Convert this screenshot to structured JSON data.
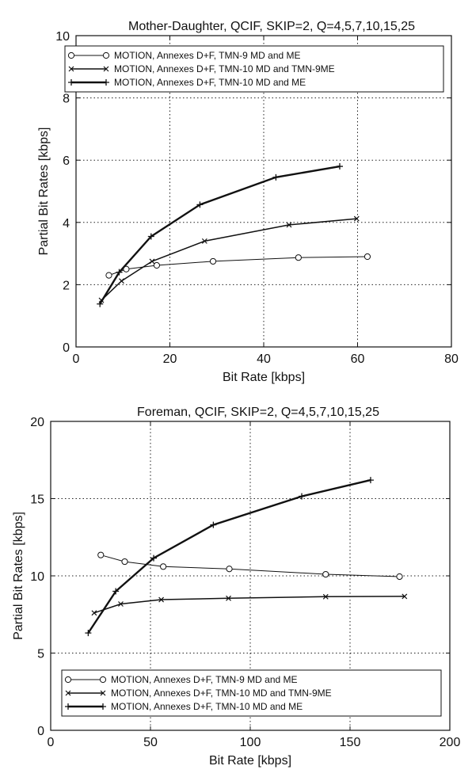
{
  "chart_data": [
    {
      "type": "line",
      "title": "Mother-Daughter, QCIF, SKIP=2, Q=4,5,7,10,15,25",
      "xlabel": "Bit Rate [kbps]",
      "ylabel": "Partial Bit Rates [kbps]",
      "xlim": [
        0,
        80
      ],
      "ylim": [
        0,
        10
      ],
      "xticks": [
        0,
        20,
        40,
        60,
        80
      ],
      "yticks": [
        0,
        2,
        4,
        6,
        8,
        10
      ],
      "grid": true,
      "legend_position": "top",
      "series": [
        {
          "name": "MOTION, Annexes D+F, TMN-9 MD and ME",
          "marker": "circle",
          "points": [
            [
              7.0,
              2.3
            ],
            [
              10.7,
              2.5
            ],
            [
              17.2,
              2.62
            ],
            [
              29.2,
              2.75
            ],
            [
              47.4,
              2.87
            ],
            [
              62.1,
              2.9
            ]
          ]
        },
        {
          "name": "MOTION, Annexes D+F, TMN-10 MD and TMN-9ME",
          "marker": "x",
          "points": [
            [
              5.4,
              1.5
            ],
            [
              9.7,
              2.12
            ],
            [
              16.2,
              2.75
            ],
            [
              27.4,
              3.4
            ],
            [
              45.4,
              3.92
            ],
            [
              59.8,
              4.12
            ]
          ]
        },
        {
          "name": "MOTION, Annexes D+F, TMN-10 MD and ME",
          "marker": "plus",
          "points": [
            [
              5.1,
              1.38
            ],
            [
              9.2,
              2.4
            ],
            [
              16.0,
              3.55
            ],
            [
              26.4,
              4.57
            ],
            [
              42.6,
              5.45
            ],
            [
              56.2,
              5.8
            ]
          ]
        }
      ]
    },
    {
      "type": "line",
      "title": "Foreman, QCIF, SKIP=2, Q=4,5,7,10,15,25",
      "xlabel": "Bit Rate [kbps]",
      "ylabel": "Partial Bit Rates [kbps]",
      "xlim": [
        0,
        200
      ],
      "ylim": [
        0,
        20
      ],
      "xticks": [
        0,
        50,
        100,
        150,
        200
      ],
      "yticks": [
        0,
        5,
        10,
        15,
        20
      ],
      "grid": true,
      "legend_position": "bottom",
      "series": [
        {
          "name": "MOTION, Annexes D+F, TMN-9 MD and ME",
          "marker": "circle",
          "points": [
            [
              25.1,
              11.35
            ],
            [
              37.1,
              10.92
            ],
            [
              56.4,
              10.6
            ],
            [
              89.5,
              10.45
            ],
            [
              137.8,
              10.1
            ],
            [
              174.8,
              9.95
            ]
          ]
        },
        {
          "name": "MOTION, Annexes D+F, TMN-10 MD and TMN-9ME",
          "marker": "x",
          "points": [
            [
              21.8,
              7.6
            ],
            [
              35.1,
              8.18
            ],
            [
              55.4,
              8.46
            ],
            [
              89.1,
              8.55
            ],
            [
              137.8,
              8.65
            ],
            [
              177.3,
              8.67
            ]
          ]
        },
        {
          "name": "MOTION, Annexes D+F, TMN-10 MD and ME",
          "marker": "plus",
          "points": [
            [
              18.8,
              6.3
            ],
            [
              32.6,
              9.0
            ],
            [
              51.6,
              11.15
            ],
            [
              81.5,
              13.3
            ],
            [
              125.8,
              15.15
            ],
            [
              160.3,
              16.2
            ]
          ]
        }
      ]
    }
  ]
}
